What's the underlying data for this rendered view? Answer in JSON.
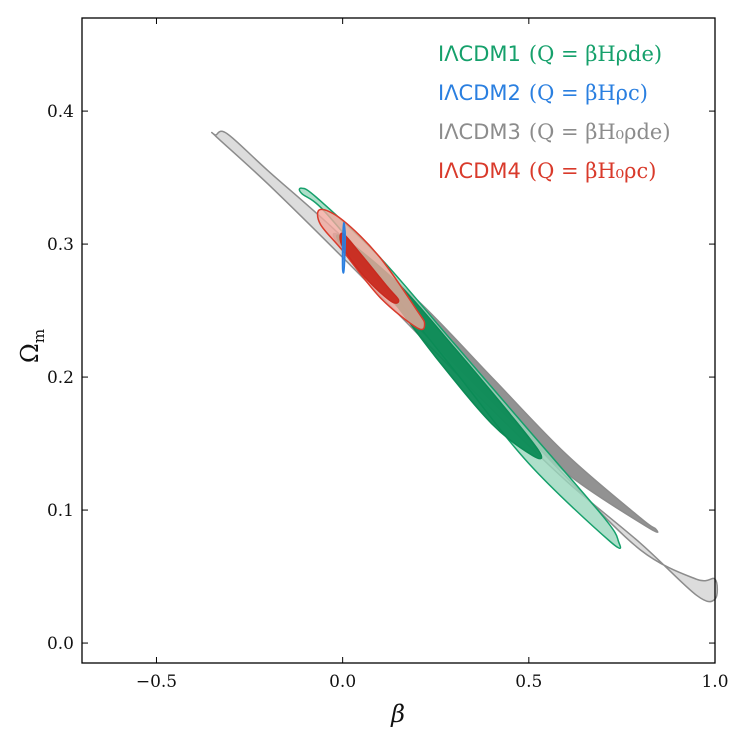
{
  "chart_data": {
    "type": "scatter",
    "title": "",
    "xlabel": "β",
    "ylabel": "Ωm",
    "ylabel_main": "Ω",
    "ylabel_sub": "m",
    "xlim": [
      -0.7,
      1.0
    ],
    "ylim": [
      -0.015,
      0.47
    ],
    "xticks": [
      -0.5,
      0.0,
      0.5,
      1.0
    ],
    "xtick_labels": [
      "−0.5",
      "0.0",
      "0.5",
      "1.0"
    ],
    "yticks": [
      0.0,
      0.1,
      0.2,
      0.3,
      0.4
    ],
    "ytick_labels": [
      "0.0",
      "0.1",
      "0.2",
      "0.3",
      "0.4"
    ],
    "grid": false,
    "legend_position": "top-right",
    "series": [
      {
        "name": "IΛCDM3",
        "formula": "(Q = βH₀ρde)",
        "color": "#8c8c8c",
        "contours": [
          {
            "level": "95%",
            "fill": "#d3d3d3",
            "stroke": "#8c8c8c",
            "points": [
              [
                -0.34,
                0.382
              ],
              [
                -0.31,
                0.383
              ],
              [
                -0.2,
                0.355
              ],
              [
                0.0,
                0.305
              ],
              [
                0.2,
                0.245
              ],
              [
                0.4,
                0.185
              ],
              [
                0.6,
                0.125
              ],
              [
                0.8,
                0.07
              ],
              [
                0.95,
                0.048
              ],
              [
                1.0,
                0.048
              ],
              [
                1.0,
                0.033
              ],
              [
                0.95,
                0.036
              ],
              [
                0.8,
                0.075
              ],
              [
                0.6,
                0.122
              ],
              [
                0.4,
                0.176
              ],
              [
                0.2,
                0.233
              ],
              [
                0.0,
                0.29
              ],
              [
                -0.2,
                0.345
              ],
              [
                -0.34,
                0.381
              ]
            ]
          },
          {
            "level": "68%",
            "fill": "#8c8c8c",
            "stroke": "#8c8c8c",
            "points": [
              [
                0.0,
                0.305
              ],
              [
                0.2,
                0.258
              ],
              [
                0.4,
                0.2
              ],
              [
                0.6,
                0.142
              ],
              [
                0.8,
                0.094
              ],
              [
                0.84,
                0.086
              ],
              [
                0.82,
                0.087
              ],
              [
                0.6,
                0.128
              ],
              [
                0.4,
                0.182
              ],
              [
                0.2,
                0.238
              ],
              [
                0.0,
                0.296
              ]
            ]
          }
        ]
      },
      {
        "name": "IΛCDM1",
        "formula": "(Q = βHρde)",
        "color": "#15a06b",
        "contours": [
          {
            "level": "95%",
            "fill": "#9ad7bd",
            "stroke": "#15a06b",
            "points": [
              [
                -0.11,
                0.342
              ],
              [
                -0.07,
                0.335
              ],
              [
                0.1,
                0.29
              ],
              [
                0.3,
                0.225
              ],
              [
                0.5,
                0.16
              ],
              [
                0.7,
                0.095
              ],
              [
                0.74,
                0.077
              ],
              [
                0.72,
                0.076
              ],
              [
                0.5,
                0.135
              ],
              [
                0.3,
                0.205
              ],
              [
                0.1,
                0.275
              ],
              [
                -0.05,
                0.325
              ],
              [
                -0.11,
                0.338
              ]
            ]
          },
          {
            "level": "68%",
            "fill": "#0b8a55",
            "stroke": "#0b8a55",
            "points": [
              [
                0.0,
                0.305
              ],
              [
                0.15,
                0.27
              ],
              [
                0.3,
                0.222
              ],
              [
                0.45,
                0.172
              ],
              [
                0.53,
                0.143
              ],
              [
                0.51,
                0.141
              ],
              [
                0.4,
                0.165
              ],
              [
                0.25,
                0.215
              ],
              [
                0.1,
                0.27
              ],
              [
                0.0,
                0.298
              ]
            ]
          }
        ]
      },
      {
        "name": "IΛCDM4",
        "formula": "(Q = βH₀ρc)",
        "color": "#d93a2b",
        "contours": [
          {
            "level": "95%",
            "fill": "#f1a99f",
            "stroke": "#d93a2b",
            "points": [
              [
                -0.06,
                0.326
              ],
              [
                0.0,
                0.318
              ],
              [
                0.1,
                0.29
              ],
              [
                0.2,
                0.25
              ],
              [
                0.22,
                0.24
              ],
              [
                0.2,
                0.237
              ],
              [
                0.1,
                0.26
              ],
              [
                0.0,
                0.295
              ],
              [
                -0.06,
                0.315
              ]
            ]
          },
          {
            "level": "68%",
            "fill": "#c92a1f",
            "stroke": "#c92a1f",
            "points": [
              [
                0.0,
                0.308
              ],
              [
                0.05,
                0.292
              ],
              [
                0.12,
                0.268
              ],
              [
                0.15,
                0.258
              ],
              [
                0.13,
                0.257
              ],
              [
                0.06,
                0.275
              ],
              [
                0.0,
                0.298
              ]
            ]
          }
        ]
      },
      {
        "name": "IΛCDM2",
        "formula": "(Q = βHρc)",
        "color": "#2a7fe0",
        "contours": [
          {
            "level": "95%",
            "fill": "#2a7fe0",
            "stroke": "#2a7fe0",
            "points": [
              [
                0.003,
                0.316
              ],
              [
                0.007,
                0.305
              ],
              [
                0.004,
                0.281
              ],
              [
                0.0,
                0.281
              ],
              [
                0.0,
                0.3
              ]
            ]
          }
        ]
      }
    ]
  },
  "legend": [
    {
      "model": "IΛCDM1",
      "expr": "(Q = βHρde)",
      "color": "#15a06b"
    },
    {
      "model": "IΛCDM2",
      "expr": "(Q = βHρc)",
      "color": "#2a7fe0"
    },
    {
      "model": "IΛCDM3",
      "expr": "(Q = βH₀ρde)",
      "color": "#8c8c8c"
    },
    {
      "model": "IΛCDM4",
      "expr": "(Q = βH₀ρc)",
      "color": "#d93a2b"
    }
  ]
}
